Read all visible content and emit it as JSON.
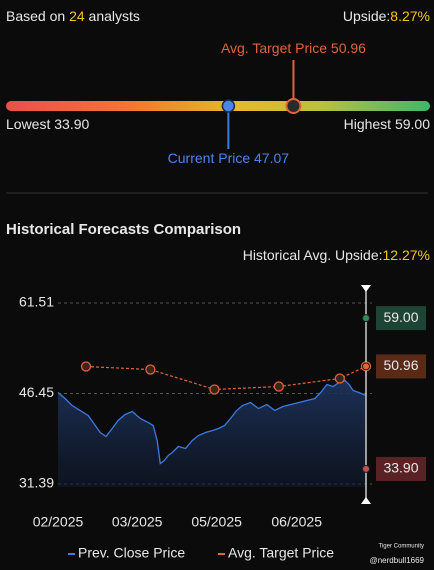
{
  "header": {
    "prefix": "Based on",
    "count": 24,
    "suffix": "analysts",
    "upside_label": "Upside:",
    "upside_value": "8.27%"
  },
  "gauge": {
    "min": {
      "value": 33.9,
      "label": "33.90"
    },
    "max": {
      "value": 59.0,
      "label": "59.00"
    },
    "lowest_label": "Lowest",
    "highest_label": "Highest",
    "current_label": "Current Price",
    "current": {
      "value": 47.07,
      "label": "47.07"
    },
    "target_label": "Avg. Target Price",
    "target": {
      "value": 50.96,
      "label": "50.96"
    }
  },
  "chart_data": {
    "type": "line",
    "title": "Historical Forecasts Comparison",
    "subtitle_label": "Historical Avg. Upside:",
    "subtitle_value": "12.27%",
    "xlim": [
      0,
      100
    ],
    "xticks": [
      {
        "value": 0,
        "label": "02/2025"
      },
      {
        "value": 25.7,
        "label": "03/2025"
      },
      {
        "value": 51.5,
        "label": "05/2025"
      },
      {
        "value": 77.5,
        "label": "06/2025"
      }
    ],
    "ylim": [
      28.73,
      63.84
    ],
    "yticks": [
      61.51,
      46.45,
      31.39
    ],
    "grid": true,
    "series": [
      {
        "name": "Prev. Close Price",
        "color": "#3b7be0",
        "x": [
          0,
          2.3,
          4.6,
          7.2,
          9.8,
          12.1,
          13.7,
          15.6,
          17.6,
          19.5,
          21.8,
          24.1,
          26.7,
          29.3,
          30.9,
          32.2,
          33.2,
          34.5,
          35.8,
          37.1,
          39.1,
          41.4,
          43.6,
          45.6,
          47.9,
          50.2,
          52.1,
          54.1,
          56,
          58,
          59.9,
          62.5,
          65.1,
          67.8,
          70.4,
          73,
          75.6,
          78.2,
          80.8,
          83.4,
          85.3,
          87.3,
          89.3,
          91.2,
          93.2,
          94.5,
          95.8,
          97.7,
          100
        ],
        "values": [
          46.62,
          45.62,
          44.45,
          43.62,
          42.79,
          41.13,
          39.96,
          39.3,
          40.63,
          41.96,
          42.96,
          43.45,
          42.29,
          41.62,
          41.13,
          38.63,
          34.8,
          35.3,
          36.13,
          36.63,
          37.63,
          37.3,
          38.63,
          39.46,
          39.96,
          40.29,
          40.63,
          41.13,
          42.29,
          43.62,
          44.45,
          44.95,
          43.95,
          44.62,
          43.62,
          44.29,
          44.62,
          44.95,
          45.29,
          45.62,
          46.62,
          47.95,
          47.62,
          48.28,
          48.61,
          47.95,
          46.95,
          46.62,
          46.12
        ]
      },
      {
        "name": "Avg. Target Price",
        "color": "#e0643a",
        "x": [
          9.1,
          30,
          50.8,
          71.7,
          91.5,
          100
        ],
        "values": [
          50.94,
          50.44,
          47.12,
          47.61,
          48.95,
          50.96
        ]
      }
    ],
    "cursor": [
      {
        "value": 59.0,
        "label": "59.00",
        "color": "#2f8a5c",
        "box": "#1d4434"
      },
      {
        "value": 50.96,
        "label": "50.96",
        "color": "#e0643a",
        "box": "#5a2a17"
      },
      {
        "value": 33.9,
        "label": "33.90",
        "color": "#c0504d",
        "box": "#5a2224"
      }
    ]
  },
  "watermark": {
    "brand": "Tiger Community",
    "user": "@nerdbull1669"
  }
}
